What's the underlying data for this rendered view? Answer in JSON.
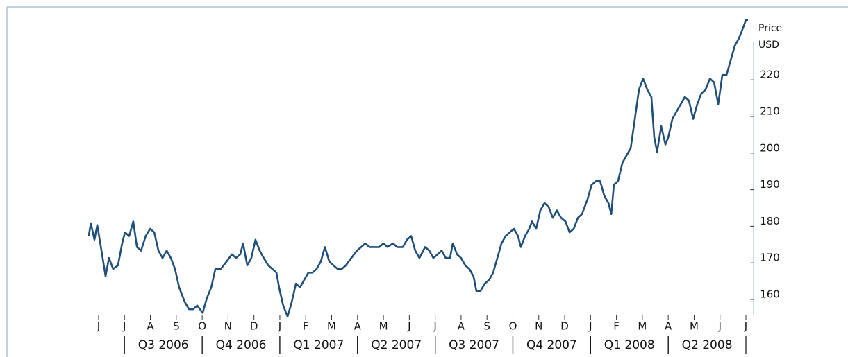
{
  "chart_data": {
    "type": "line",
    "ylabel": [
      "Price",
      "USD"
    ],
    "color": "#1f4e79",
    "x": [
      -0.38,
      -0.3,
      -0.16,
      -0.05,
      0.11,
      0.27,
      0.4,
      0.56,
      0.75,
      0.91,
      1.02,
      1.18,
      1.34,
      1.48,
      1.64,
      1.82,
      1.99,
      2.15,
      2.31,
      2.47,
      2.63,
      2.79,
      2.95,
      3.11,
      3.33,
      3.49,
      3.65,
      3.81,
      4.02,
      4.18,
      4.35,
      4.51,
      4.72,
      4.94,
      5.15,
      5.31,
      5.47,
      5.58,
      5.74,
      5.9,
      6.06,
      6.22,
      6.38,
      6.55,
      6.71,
      6.87,
      6.97,
      7.13,
      7.3,
      7.46,
      7.62,
      7.78,
      7.94,
      8.1,
      8.26,
      8.42,
      8.58,
      8.74,
      8.91,
      9.07,
      9.23,
      9.39,
      9.55,
      9.76,
      9.98,
      10.14,
      10.3,
      10.46,
      10.62,
      10.84,
      11.0,
      11.16,
      11.37,
      11.53,
      11.75,
      11.91,
      12.07,
      12.23,
      12.39,
      12.61,
      12.77,
      12.93,
      13.09,
      13.25,
      13.41,
      13.57,
      13.68,
      13.84,
      14.0,
      14.16,
      14.32,
      14.48,
      14.59,
      14.75,
      14.91,
      15.08,
      15.24,
      15.4,
      15.56,
      15.72,
      15.88,
      16.04,
      16.2,
      16.31,
      16.47,
      16.63,
      16.74,
      16.9,
      17.06,
      17.22,
      17.38,
      17.54,
      17.7,
      17.86,
      18.03,
      18.19,
      18.35,
      18.51,
      18.67,
      18.88,
      19.04,
      19.21,
      19.37,
      19.53,
      19.69,
      19.8,
      19.9,
      20.06,
      20.23,
      20.39,
      20.55,
      20.71,
      20.87,
      21.03,
      21.19,
      21.35,
      21.46,
      21.57,
      21.73,
      21.89,
      22.0,
      22.16,
      22.32,
      22.48,
      22.64,
      22.8,
      22.96,
      23.12,
      23.28,
      23.44,
      23.61,
      23.77,
      23.93,
      24.09,
      24.25,
      24.41,
      24.57,
      24.73,
      24.84,
      25.0,
      25.08
    ],
    "values": [
      176,
      179.5,
      175,
      179,
      172,
      165,
      170,
      167,
      168,
      174,
      177,
      176,
      180,
      173,
      172,
      176,
      178,
      177,
      172,
      170,
      172,
      170,
      167,
      162,
      158,
      156,
      156,
      157,
      155,
      159,
      162,
      167,
      167,
      169,
      171,
      170,
      171,
      174,
      168,
      170,
      175,
      172,
      170,
      168,
      167,
      166,
      162,
      157,
      154,
      158,
      163,
      162,
      164,
      166,
      166,
      167,
      169,
      173,
      169,
      168,
      167,
      167,
      168,
      170,
      172,
      173,
      174,
      173,
      173,
      173,
      174,
      173,
      174,
      173,
      173,
      175,
      176,
      172,
      170,
      173,
      172,
      170,
      171,
      172,
      170,
      170,
      174,
      171,
      170,
      168,
      167,
      165,
      161,
      161,
      163,
      164,
      166,
      170,
      174,
      176,
      177,
      178,
      176,
      173,
      176,
      178,
      180,
      178,
      183,
      185,
      184,
      181,
      183,
      181,
      180,
      177,
      178,
      181,
      182,
      186,
      190,
      191,
      191,
      187,
      185,
      182,
      190,
      191,
      196,
      198,
      200,
      208,
      216,
      219,
      216,
      214,
      203,
      199,
      206,
      201,
      203,
      208,
      210,
      212,
      214,
      213,
      208,
      212,
      215,
      216,
      219,
      218,
      212,
      220,
      220,
      224,
      228,
      230,
      232,
      235,
      235
    ],
    "xlim": [
      -0.45,
      25.3
    ],
    "xticks": [
      {
        "value": 0,
        "label": "J"
      },
      {
        "value": 1,
        "label": "J"
      },
      {
        "value": 2,
        "label": "A"
      },
      {
        "value": 3,
        "label": "S"
      },
      {
        "value": 4,
        "label": "O"
      },
      {
        "value": 5,
        "label": "N"
      },
      {
        "value": 6,
        "label": "D"
      },
      {
        "value": 7,
        "label": "J"
      },
      {
        "value": 8,
        "label": "F"
      },
      {
        "value": 9,
        "label": "M"
      },
      {
        "value": 10,
        "label": "A"
      },
      {
        "value": 11,
        "label": "M"
      },
      {
        "value": 12,
        "label": "J"
      },
      {
        "value": 13,
        "label": "J"
      },
      {
        "value": 14,
        "label": "A"
      },
      {
        "value": 15,
        "label": "S"
      },
      {
        "value": 16,
        "label": "O"
      },
      {
        "value": 17,
        "label": "N"
      },
      {
        "value": 18,
        "label": "D"
      },
      {
        "value": 19,
        "label": "J"
      },
      {
        "value": 20,
        "label": "F"
      },
      {
        "value": 21,
        "label": "M"
      },
      {
        "value": 22,
        "label": "A"
      },
      {
        "value": 23,
        "label": "M"
      },
      {
        "value": 24,
        "label": "J"
      },
      {
        "value": 25,
        "label": "J"
      }
    ],
    "quarter_ticks": [
      {
        "value": 2.5,
        "label": "Q3 2006"
      },
      {
        "value": 5.5,
        "label": "Q4 2006"
      },
      {
        "value": 8.5,
        "label": "Q1 2007"
      },
      {
        "value": 11.5,
        "label": "Q2 2007"
      },
      {
        "value": 14.5,
        "label": "Q3 2007"
      },
      {
        "value": 17.5,
        "label": "Q4 2007"
      },
      {
        "value": 20.5,
        "label": "Q1 2008"
      },
      {
        "value": 23.5,
        "label": "Q2 2008"
      }
    ],
    "ylim": [
      153.75,
      238.6
    ],
    "yticks": [
      160,
      170,
      180,
      190,
      200,
      210,
      220
    ]
  }
}
